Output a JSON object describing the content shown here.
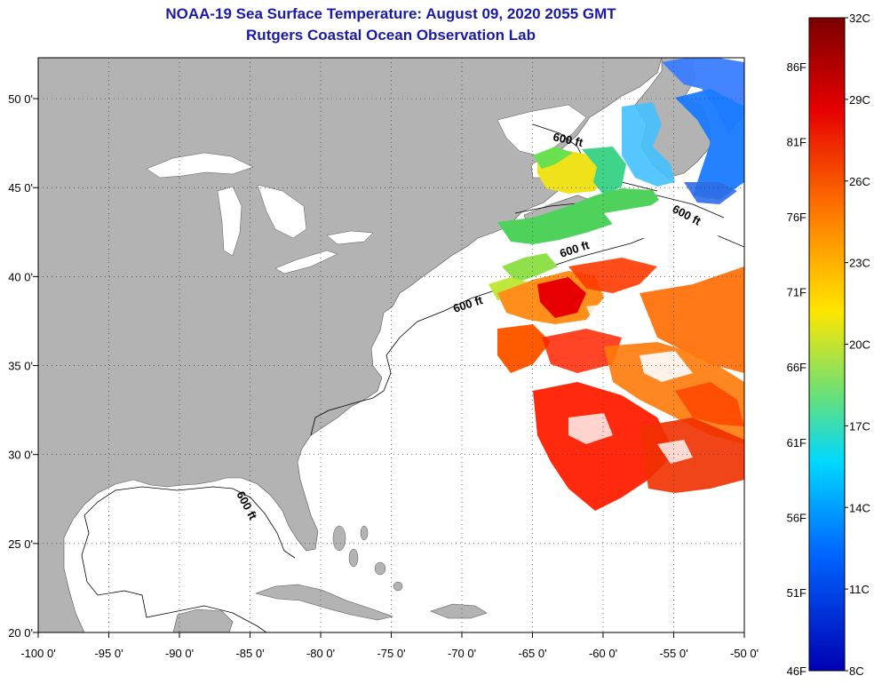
{
  "header": {
    "title": "NOAA-19 Sea Surface Temperature:  August 09, 2020 2055 GMT",
    "subtitle": "Rutgers Coastal Ocean Observation Lab"
  },
  "map": {
    "lon_range": [
      -100,
      -50
    ],
    "lat_range": [
      20,
      52.3
    ],
    "lon_ticks": [
      "-100 0'",
      "-95 0'",
      "-90 0'",
      "-85 0'",
      "-80 0'",
      "-75 0'",
      "-70 0'",
      "-65 0'",
      "-60 0'",
      "-55 0'",
      "-50 0'"
    ],
    "lat_ticks": [
      {
        "lat": 50,
        "label": "50 0'"
      },
      {
        "lat": 45,
        "label": "45 0'"
      },
      {
        "lat": 40,
        "label": "40 0'"
      },
      {
        "lat": 35,
        "label": "35 0'"
      },
      {
        "lat": 30,
        "label": "30 0'"
      },
      {
        "lat": 25,
        "label": "25 0'"
      },
      {
        "lat": 20,
        "label": "20 0'"
      }
    ],
    "contour_labels": [
      "600 ft",
      "600 ft",
      "600 ft",
      "600 ft",
      "600 ft"
    ],
    "land_color": "#b3b3b3",
    "ocean_color": "#ffffff",
    "grid": "dotted"
  },
  "colorbar": {
    "celsius_labels": [
      "32C",
      "29C",
      "26C",
      "23C",
      "20C",
      "17C",
      "14C",
      "11C",
      "8C"
    ],
    "fahrenheit_labels": [
      "86F",
      "81F",
      "76F",
      "71F",
      "66F",
      "61F",
      "56F",
      "51F",
      "46F"
    ],
    "range_c": [
      8,
      32
    ],
    "colormap": [
      "#7a0000",
      "#e60000",
      "#ff7a00",
      "#ffe600",
      "#66e07a",
      "#00d8ff",
      "#0066ff",
      "#0000b3"
    ]
  }
}
